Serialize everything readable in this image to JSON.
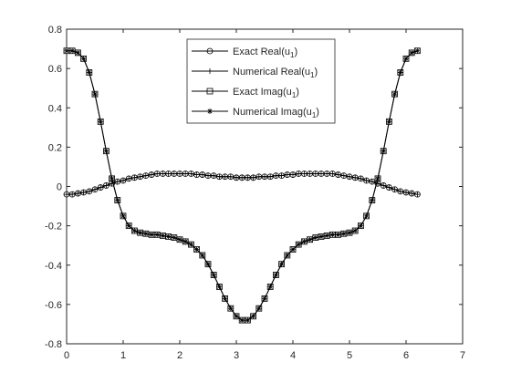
{
  "chart_data": {
    "type": "line",
    "title": "",
    "xlabel": "",
    "ylabel": "",
    "xlim": [
      0,
      7
    ],
    "ylim": [
      -0.8,
      0.8
    ],
    "xticks": [
      0,
      1,
      2,
      3,
      4,
      5,
      6,
      7
    ],
    "yticks": [
      -0.8,
      -0.6,
      -0.4,
      -0.2,
      0,
      0.2,
      0.4,
      0.6,
      0.8
    ],
    "xtick_labels": [
      "0",
      "1",
      "2",
      "3",
      "4",
      "5",
      "6",
      "7"
    ],
    "ytick_labels": [
      "-0.8",
      "-0.6",
      "-0.4",
      "-0.2",
      "0",
      "0.2",
      "0.4",
      "0.6",
      "0.8"
    ],
    "grid": false,
    "legend_position": "top-center",
    "x": [
      0.0,
      0.1,
      0.2,
      0.3,
      0.4,
      0.5,
      0.6,
      0.7,
      0.8,
      0.9,
      1.0,
      1.1,
      1.2,
      1.3,
      1.4,
      1.5,
      1.6,
      1.7,
      1.8,
      1.9,
      2.0,
      2.1,
      2.2,
      2.3,
      2.4,
      2.5,
      2.6,
      2.7,
      2.8,
      2.9,
      3.0,
      3.1,
      3.2,
      3.3,
      3.4,
      3.5,
      3.6,
      3.7,
      3.8,
      3.9,
      4.0,
      4.1,
      4.2,
      4.3,
      4.4,
      4.5,
      4.6,
      4.7,
      4.8,
      4.9,
      5.0,
      5.1,
      5.2,
      5.3,
      5.4,
      5.5,
      5.6,
      5.7,
      5.8,
      5.9,
      6.0,
      6.1,
      6.2
    ],
    "series": [
      {
        "name": "Exact Real(u",
        "name_sub": "1",
        "name_suffix": ")",
        "marker": "circle",
        "values": [
          -0.04,
          -0.04,
          -0.035,
          -0.03,
          -0.025,
          -0.015,
          -0.005,
          0.005,
          0.015,
          0.025,
          0.03,
          0.04,
          0.045,
          0.05,
          0.055,
          0.06,
          0.065,
          0.065,
          0.065,
          0.065,
          0.065,
          0.065,
          0.065,
          0.06,
          0.06,
          0.055,
          0.055,
          0.05,
          0.05,
          0.05,
          0.045,
          0.045,
          0.045,
          0.045,
          0.05,
          0.05,
          0.05,
          0.055,
          0.055,
          0.06,
          0.06,
          0.065,
          0.065,
          0.065,
          0.065,
          0.065,
          0.065,
          0.065,
          0.06,
          0.055,
          0.05,
          0.045,
          0.04,
          0.03,
          0.025,
          0.015,
          0.005,
          -0.005,
          -0.015,
          -0.025,
          -0.03,
          -0.035,
          -0.04
        ]
      },
      {
        "name": "Numerical Real(u",
        "name_sub": "1",
        "name_suffix": ")",
        "marker": "plus",
        "values": [
          -0.04,
          -0.04,
          -0.035,
          -0.03,
          -0.025,
          -0.015,
          -0.005,
          0.005,
          0.015,
          0.025,
          0.03,
          0.04,
          0.045,
          0.05,
          0.055,
          0.06,
          0.065,
          0.065,
          0.065,
          0.065,
          0.065,
          0.065,
          0.065,
          0.06,
          0.06,
          0.055,
          0.055,
          0.05,
          0.05,
          0.05,
          0.045,
          0.045,
          0.045,
          0.045,
          0.05,
          0.05,
          0.05,
          0.055,
          0.055,
          0.06,
          0.06,
          0.065,
          0.065,
          0.065,
          0.065,
          0.065,
          0.065,
          0.065,
          0.06,
          0.055,
          0.05,
          0.045,
          0.04,
          0.03,
          0.025,
          0.015,
          0.005,
          -0.005,
          -0.015,
          -0.025,
          -0.03,
          -0.035,
          -0.04
        ]
      },
      {
        "name": "Exact Imag(u",
        "name_sub": "1",
        "name_suffix": ")",
        "marker": "square",
        "values": [
          0.69,
          0.69,
          0.68,
          0.65,
          0.58,
          0.47,
          0.33,
          0.18,
          0.04,
          -0.07,
          -0.15,
          -0.2,
          -0.225,
          -0.235,
          -0.24,
          -0.245,
          -0.245,
          -0.25,
          -0.255,
          -0.26,
          -0.27,
          -0.28,
          -0.295,
          -0.32,
          -0.35,
          -0.395,
          -0.45,
          -0.51,
          -0.57,
          -0.62,
          -0.66,
          -0.68,
          -0.68,
          -0.66,
          -0.62,
          -0.57,
          -0.51,
          -0.45,
          -0.395,
          -0.35,
          -0.32,
          -0.295,
          -0.28,
          -0.27,
          -0.26,
          -0.255,
          -0.25,
          -0.245,
          -0.245,
          -0.24,
          -0.235,
          -0.225,
          -0.2,
          -0.15,
          -0.07,
          0.04,
          0.18,
          0.33,
          0.47,
          0.58,
          0.65,
          0.68,
          0.69
        ]
      },
      {
        "name": "Numerical Imag(u",
        "name_sub": "1",
        "name_suffix": ")",
        "marker": "asterisk",
        "values": [
          0.69,
          0.69,
          0.68,
          0.65,
          0.58,
          0.47,
          0.33,
          0.18,
          0.04,
          -0.07,
          -0.15,
          -0.2,
          -0.225,
          -0.235,
          -0.24,
          -0.245,
          -0.245,
          -0.25,
          -0.255,
          -0.26,
          -0.27,
          -0.28,
          -0.295,
          -0.32,
          -0.35,
          -0.395,
          -0.45,
          -0.51,
          -0.57,
          -0.62,
          -0.66,
          -0.68,
          -0.68,
          -0.66,
          -0.62,
          -0.57,
          -0.51,
          -0.45,
          -0.395,
          -0.35,
          -0.32,
          -0.295,
          -0.28,
          -0.27,
          -0.26,
          -0.255,
          -0.25,
          -0.245,
          -0.245,
          -0.24,
          -0.235,
          -0.225,
          -0.2,
          -0.15,
          -0.07,
          0.04,
          0.18,
          0.33,
          0.47,
          0.58,
          0.65,
          0.68,
          0.69
        ]
      }
    ]
  }
}
